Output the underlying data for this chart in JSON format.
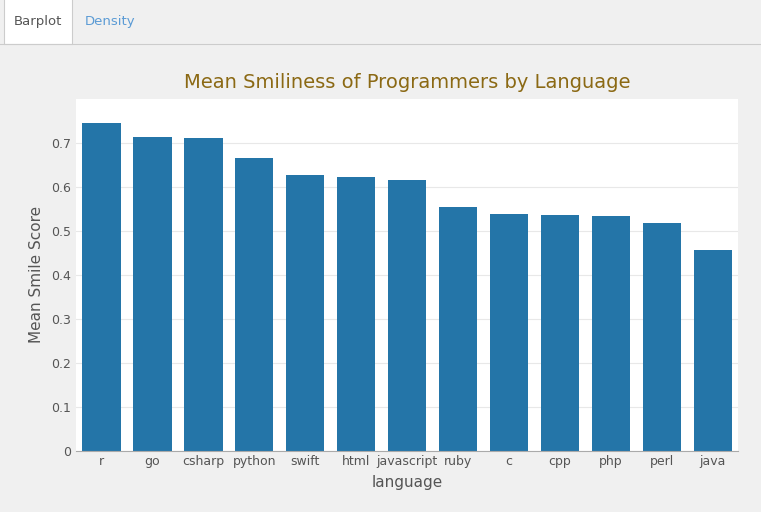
{
  "categories": [
    "r",
    "go",
    "csharp",
    "python",
    "swift",
    "html",
    "javascript",
    "ruby",
    "c",
    "cpp",
    "php",
    "perl",
    "java"
  ],
  "values": [
    0.745,
    0.713,
    0.712,
    0.666,
    0.628,
    0.622,
    0.616,
    0.554,
    0.538,
    0.537,
    0.533,
    0.519,
    0.457
  ],
  "bar_color": "#2475a8",
  "title": "Mean Smiliness of Programmers by Language",
  "title_color": "#8B6914",
  "xlabel": "language",
  "ylabel": "Mean Smile Score",
  "ylim": [
    0,
    0.8
  ],
  "yticks": [
    0,
    0.1,
    0.2,
    0.3,
    0.4,
    0.5,
    0.6,
    0.7
  ],
  "plot_bg_color": "#ffffff",
  "grid_color": "#e8e8e8",
  "tab_barplot_text": "Barplot",
  "tab_density_text": "Density",
  "tab_active_color": "#ffffff",
  "tab_inactive_bg": "#f0f0f0",
  "outer_bg_color": "#f0f0f0",
  "panel_bg_color": "#f7f7f7",
  "tab_text_active": "#555555",
  "tab_text_density": "#5b9bd5",
  "title_fontsize": 14,
  "axis_label_fontsize": 11,
  "tick_fontsize": 9,
  "border_color": "#cccccc"
}
